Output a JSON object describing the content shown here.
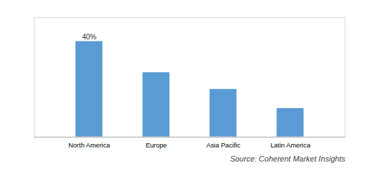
{
  "chart_data": {
    "type": "bar",
    "categories": [
      "North America",
      "Europe",
      "Asia Pacific",
      "Latin America"
    ],
    "values": [
      40,
      27,
      20,
      12
    ],
    "color": "#5b9bd5",
    "ylim": [
      0,
      50
    ],
    "yticks": [],
    "grid": false,
    "tick_labels": "x",
    "annotations": [
      {
        "text": "40%",
        "category": "North America"
      }
    ],
    "caption": "Source: Coherent Market Insights"
  }
}
